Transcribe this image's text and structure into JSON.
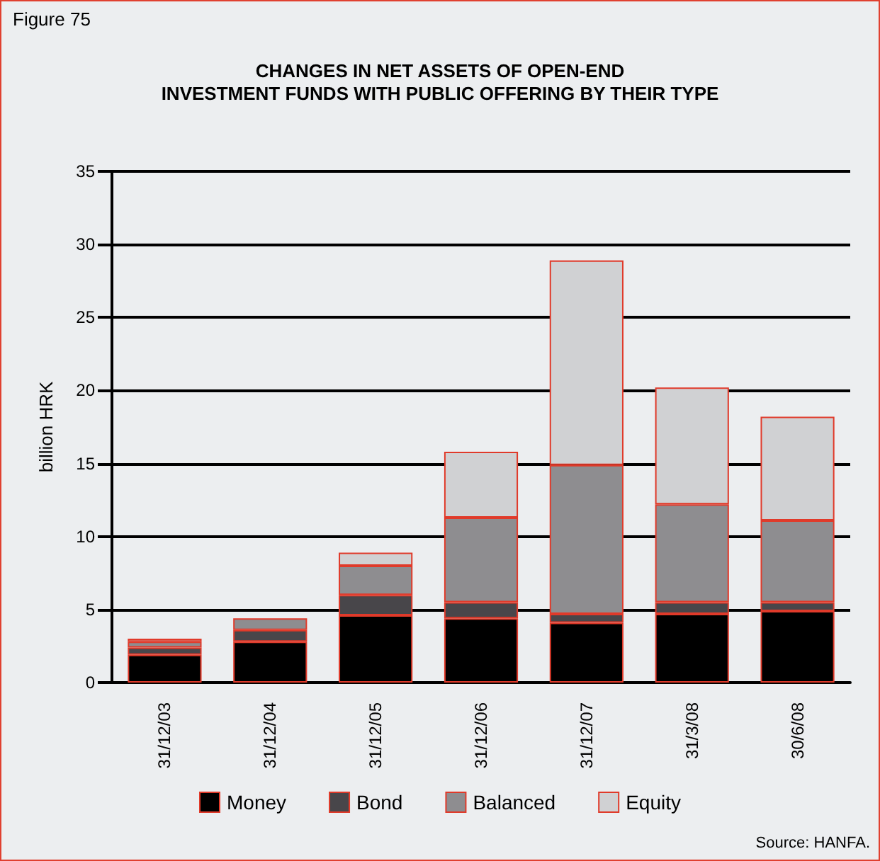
{
  "chart_data": {
    "type": "bar",
    "stacked": true,
    "title": "CHANGES IN NET ASSETS OF OPEN-END\nINVESTMENT FUNDS WITH PUBLIC OFFERING BY THEIR TYPE",
    "ylabel": "billion HRK",
    "annotations": [
      "Figure 75",
      "Source: HANFA."
    ],
    "categories": [
      "31/12/03",
      "31/12/04",
      "31/12/05",
      "31/12/06",
      "31/12/07",
      "31/3/08",
      "30/6/08"
    ],
    "series": [
      {
        "name": "Money",
        "color": "#000000",
        "values": [
          1.9,
          2.8,
          4.6,
          4.4,
          4.1,
          4.7,
          4.9
        ]
      },
      {
        "name": "Bond",
        "color": "#48464a",
        "values": [
          0.5,
          0.8,
          1.4,
          1.1,
          0.6,
          0.8,
          0.6
        ]
      },
      {
        "name": "Balanced",
        "color": "#8e8d90",
        "values": [
          0.4,
          0.8,
          2.0,
          5.8,
          10.2,
          6.7,
          5.6
        ]
      },
      {
        "name": "Equity",
        "color": "#d0d1d3",
        "values": [
          0.2,
          null,
          0.9,
          4.5,
          14.0,
          8.0,
          7.1
        ]
      }
    ],
    "ylim": [
      0,
      35
    ],
    "yticks": [
      0,
      5,
      10,
      15,
      20,
      25,
      30,
      35
    ],
    "grid": "y",
    "legend": "bottom"
  }
}
